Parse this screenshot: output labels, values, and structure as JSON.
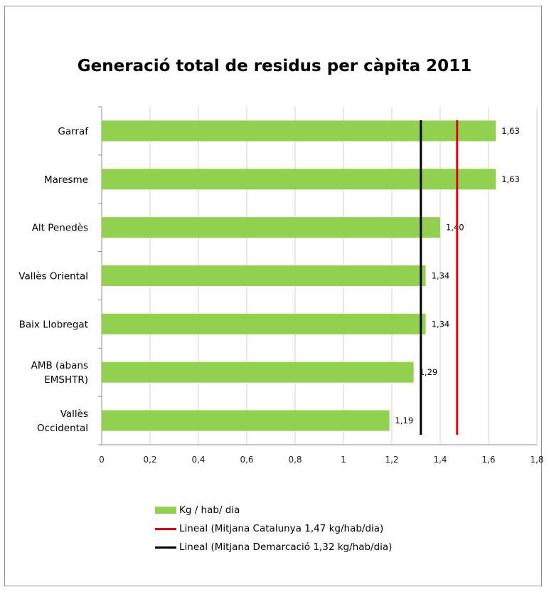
{
  "chart_data": {
    "type": "bar",
    "orientation": "horizontal",
    "title": "Generació total de residus per càpita 2011",
    "categories": [
      "Garraf",
      "Maresme",
      "Alt Penedès",
      "Vallès Oriental",
      "Baix Llobregat",
      "AMB (abans EMSHTR)",
      "Vallès Occidental"
    ],
    "category_lines": [
      [
        "Garraf"
      ],
      [
        "Maresme"
      ],
      [
        "Alt Penedès"
      ],
      [
        "Vallès Oriental"
      ],
      [
        "Baix Llobregat"
      ],
      [
        "AMB (abans",
        "EMSHTR)"
      ],
      [
        "Vallès",
        "Occidental"
      ]
    ],
    "series": [
      {
        "name": "Kg / hab/ dia",
        "values": [
          1.63,
          1.63,
          1.4,
          1.34,
          1.34,
          1.29,
          1.19
        ],
        "color": "#92d050"
      }
    ],
    "data_labels": [
      "1,63",
      "1,63",
      "1,40",
      "1,34",
      "1,34",
      "1,29",
      "1,19"
    ],
    "reference_lines": [
      {
        "name": "Lineal (Mitjana Catalunya 1,47 kg/hab/dia)",
        "value": 1.47,
        "color": "#e3000f"
      },
      {
        "name": "Lineal (Mitjana Demarcació 1,32 kg/hab/dia)",
        "value": 1.32,
        "color": "#000000"
      }
    ],
    "xlim": [
      0,
      1.8
    ],
    "xticks": [
      0,
      0.2,
      0.4,
      0.6,
      0.8,
      1,
      1.2,
      1.4,
      1.6,
      1.8
    ],
    "xtick_labels": [
      "0",
      "0,2",
      "0,4",
      "0,6",
      "0,8",
      "1",
      "1,2",
      "1,4",
      "1,6",
      "1,8"
    ],
    "grid": "vertical",
    "legend_position": "bottom"
  }
}
